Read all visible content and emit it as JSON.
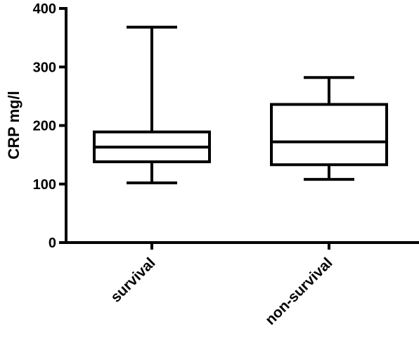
{
  "chart_data": {
    "type": "box",
    "title": "",
    "xlabel": "",
    "ylabel": "CRP mg/l",
    "ylim": [
      0,
      400
    ],
    "yticks": [
      0,
      100,
      200,
      300,
      400
    ],
    "grid": false,
    "categories": [
      "survival",
      "non-survival"
    ],
    "boxes": [
      {
        "category": "survival",
        "min": 102,
        "q1": 138,
        "median": 163,
        "q3": 189,
        "max": 368
      },
      {
        "category": "non-survival",
        "min": 108,
        "q1": 133,
        "median": 172,
        "q3": 236,
        "max": 282
      }
    ]
  }
}
